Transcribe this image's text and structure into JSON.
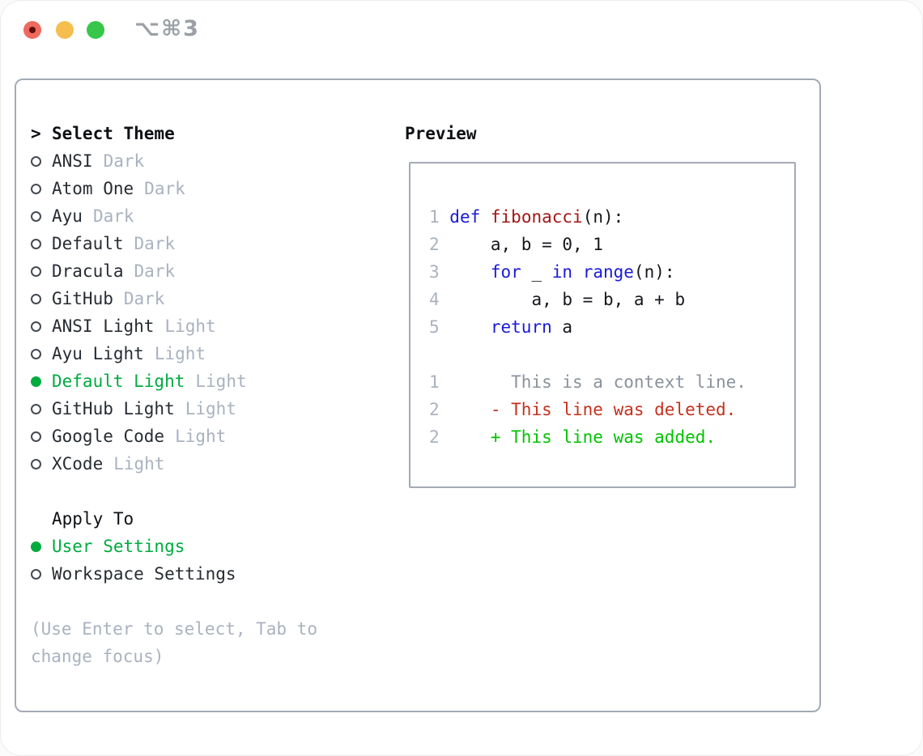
{
  "window": {
    "title": "⌥⌘3"
  },
  "colors": {
    "accent_green": "#00ab3f",
    "keyword_blue": "#1a1ad9",
    "function_red": "#a31515",
    "deleted_red": "#c5311d",
    "added_green": "#00c300",
    "muted_gray": "#a9b2bf",
    "context_gray": "#8a929c",
    "text_dark": "#272c33",
    "border_gray": "#a3aab6",
    "traffic_red": "#ee6a5e",
    "traffic_yellow": "#f6be4f",
    "traffic_green": "#37c649",
    "title_gray": "#9aa0a6"
  },
  "theme_menu": {
    "header": {
      "marker": ">",
      "label": "Select Theme"
    },
    "items": [
      {
        "name": "ANSI",
        "variant": "Dark",
        "selected": false
      },
      {
        "name": "Atom One",
        "variant": "Dark",
        "selected": false
      },
      {
        "name": "Ayu",
        "variant": "Dark",
        "selected": false
      },
      {
        "name": "Default",
        "variant": "Dark",
        "selected": false
      },
      {
        "name": "Dracula",
        "variant": "Dark",
        "selected": false
      },
      {
        "name": "GitHub",
        "variant": "Dark",
        "selected": false
      },
      {
        "name": "ANSI Light",
        "variant": "Light",
        "selected": false
      },
      {
        "name": "Ayu Light",
        "variant": "Light",
        "selected": false
      },
      {
        "name": "Default Light",
        "variant": "Light",
        "selected": true
      },
      {
        "name": "GitHub Light",
        "variant": "Light",
        "selected": false
      },
      {
        "name": "Google Code",
        "variant": "Light",
        "selected": false
      },
      {
        "name": "XCode",
        "variant": "Light",
        "selected": false
      }
    ]
  },
  "apply_to": {
    "header": "Apply To",
    "options": [
      {
        "label": "User Settings",
        "selected": true
      },
      {
        "label": "Workspace Settings",
        "selected": false
      }
    ]
  },
  "hint": {
    "text": "(Use Enter to select, Tab to change focus)"
  },
  "preview": {
    "title": "Preview",
    "code_lines": [
      {
        "no": "1",
        "segments": [
          {
            "t": "def"
          },
          {
            "t": " "
          },
          {
            "t": "fibonacci"
          },
          {
            "t": "(n):"
          }
        ]
      },
      {
        "no": "2",
        "segments": [
          {
            "t": "    a, b = 0, 1"
          }
        ]
      },
      {
        "no": "3",
        "segments": [
          {
            "t": "    "
          },
          {
            "t": "for"
          },
          {
            "t": " _ "
          },
          {
            "t": "in"
          },
          {
            "t": " "
          },
          {
            "t": "range"
          },
          {
            "t": "(n):"
          }
        ]
      },
      {
        "no": "4",
        "segments": [
          {
            "t": "        a, b = b, a + b"
          }
        ]
      },
      {
        "no": "5",
        "segments": [
          {
            "t": "    "
          },
          {
            "t": "return"
          },
          {
            "t": " a"
          }
        ]
      }
    ],
    "diff_lines": [
      {
        "no": "1",
        "text": "      This is a context line.",
        "type": "context"
      },
      {
        "no": "2",
        "text": "    - This line was deleted.",
        "type": "deleted"
      },
      {
        "no": "2",
        "text": "    + This line was added.",
        "type": "added"
      }
    ]
  }
}
